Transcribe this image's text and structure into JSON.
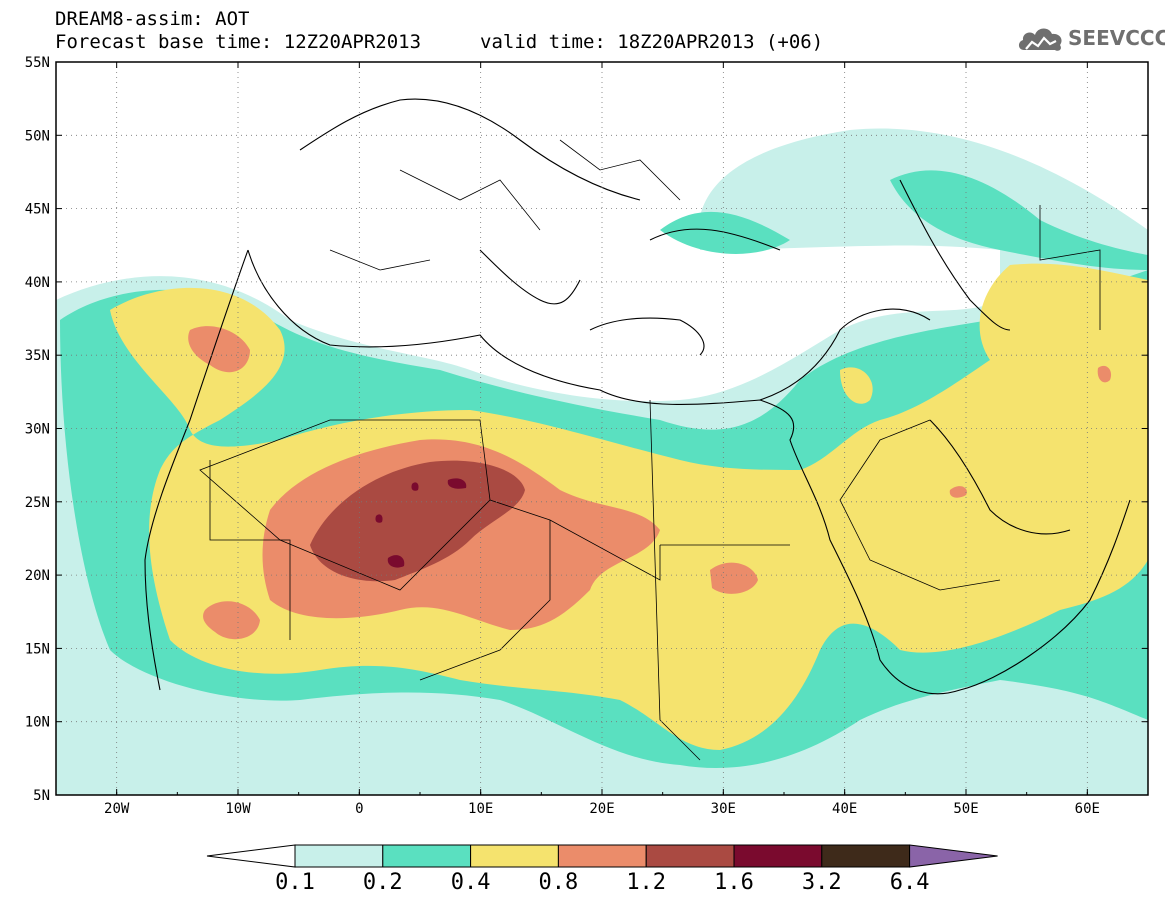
{
  "header": {
    "title": "DREAM8-assim: AOT",
    "base_time": "Forecast base time: 12Z20APR2013",
    "valid_time": "valid time: 18Z20APR2013 (+06)"
  },
  "logo": {
    "text": "SEEVCCC",
    "icon": "cloud-icon"
  },
  "axes": {
    "lat_labels": [
      "55N",
      "50N",
      "45N",
      "40N",
      "35N",
      "30N",
      "25N",
      "20N",
      "15N",
      "10N",
      "5N"
    ],
    "lon_labels": [
      "20W",
      "10W",
      "0",
      "10E",
      "20E",
      "30E",
      "40E",
      "50E",
      "60E"
    ],
    "lon_range": [
      -25,
      65
    ],
    "lat_range": [
      5,
      55
    ]
  },
  "colorbar": {
    "labels": [
      "0.1",
      "0.2",
      "0.4",
      "0.8",
      "1.2",
      "1.6",
      "3.2",
      "6.4"
    ],
    "colors": [
      "#c8f0ea",
      "#5ae0c0",
      "#f5e36e",
      "#eb8c6a",
      "#aa4a42",
      "#7a0a2e",
      "#3e2a1a",
      "#8a64a8"
    ],
    "under_color": "#ffffff"
  }
}
